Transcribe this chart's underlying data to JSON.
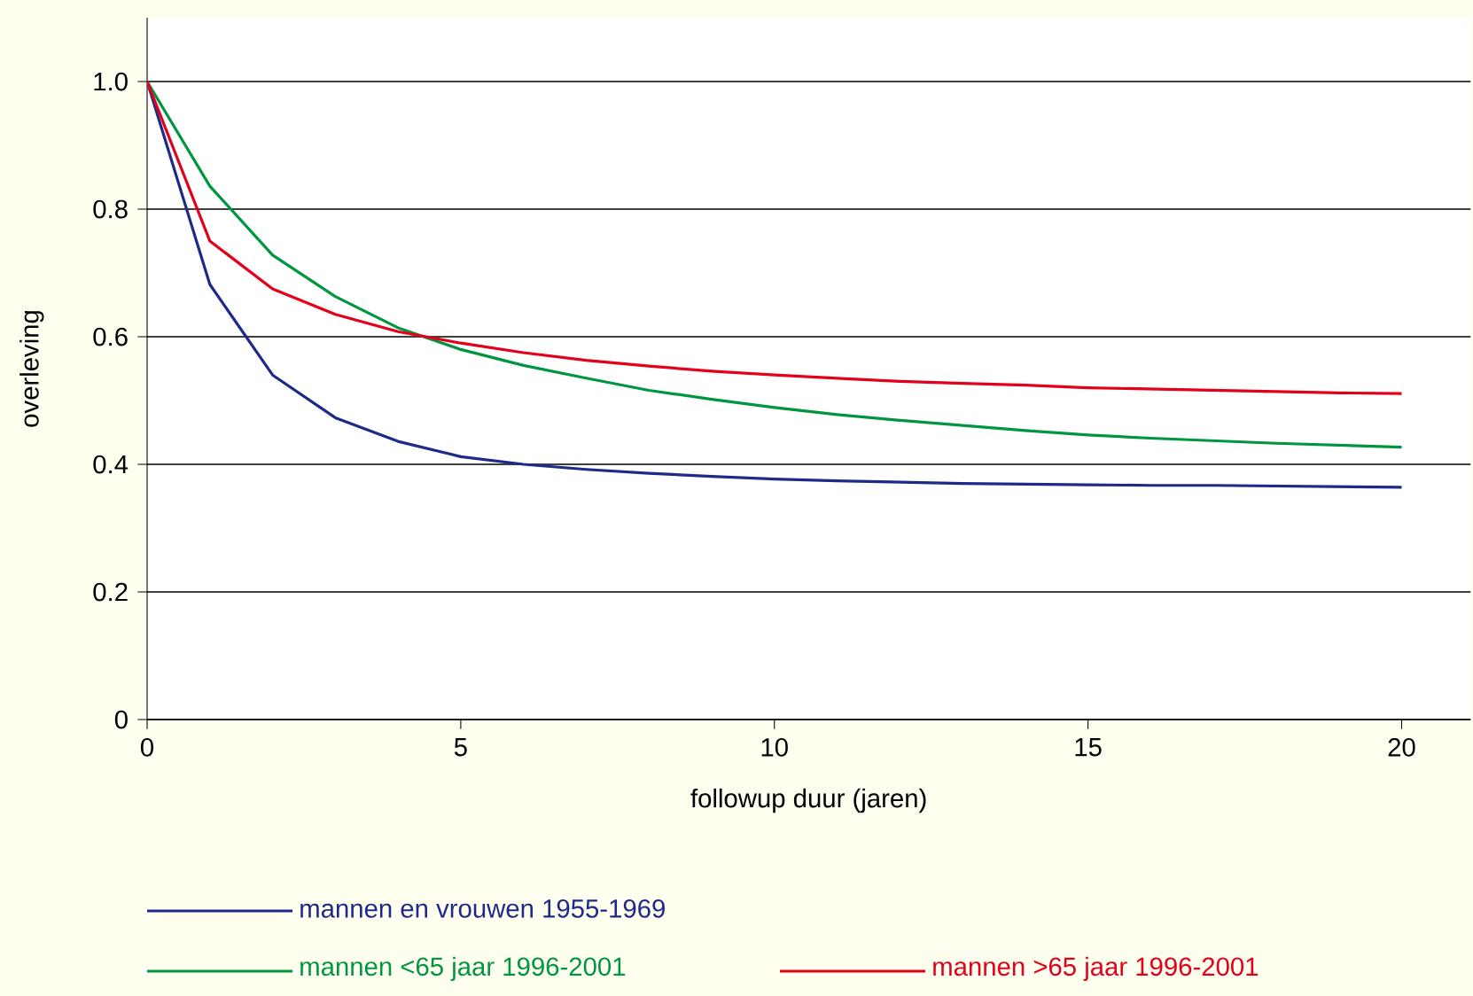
{
  "chart_data": {
    "type": "line",
    "xlabel": "followup duur (jaren)",
    "ylabel": "overleving",
    "x": [
      0,
      1,
      2,
      3,
      4,
      5,
      6,
      7,
      8,
      9,
      10,
      11,
      12,
      13,
      14,
      15,
      16,
      17,
      18,
      19,
      20
    ],
    "series": [
      {
        "name": "mannen en vrouwen 1955-1969",
        "color": "#1f2a88",
        "values": [
          1.0,
          0.682,
          0.54,
          0.473,
          0.436,
          0.412,
          0.4,
          0.392,
          0.386,
          0.381,
          0.377,
          0.374,
          0.372,
          0.37,
          0.369,
          0.368,
          0.367,
          0.367,
          0.366,
          0.365,
          0.364
        ]
      },
      {
        "name": "mannen <65 jaar 1996-2001",
        "color": "#009640",
        "values": [
          1.0,
          0.836,
          0.728,
          0.663,
          0.614,
          0.58,
          0.555,
          0.535,
          0.516,
          0.502,
          0.489,
          0.478,
          0.469,
          0.461,
          0.453,
          0.446,
          0.441,
          0.437,
          0.433,
          0.43,
          0.427
        ]
      },
      {
        "name": "mannen >65 jaar 1996-2001",
        "color": "#e3001b",
        "values": [
          1.0,
          0.75,
          0.675,
          0.635,
          0.608,
          0.59,
          0.575,
          0.563,
          0.554,
          0.546,
          0.54,
          0.535,
          0.53,
          0.527,
          0.524,
          0.52,
          0.518,
          0.516,
          0.514,
          0.512,
          0.511
        ]
      }
    ],
    "xlim": [
      0,
      21.1
    ],
    "ylim": [
      0,
      1.1
    ],
    "xticks": [
      0,
      5,
      10,
      15,
      20
    ],
    "yticks": [
      0,
      0.2,
      0.4,
      0.6,
      0.8,
      {
        "value": 1.0,
        "label": "1.0"
      }
    ],
    "grid": "y",
    "legend": "bottom",
    "marker": "none",
    "line_style": "solid"
  }
}
